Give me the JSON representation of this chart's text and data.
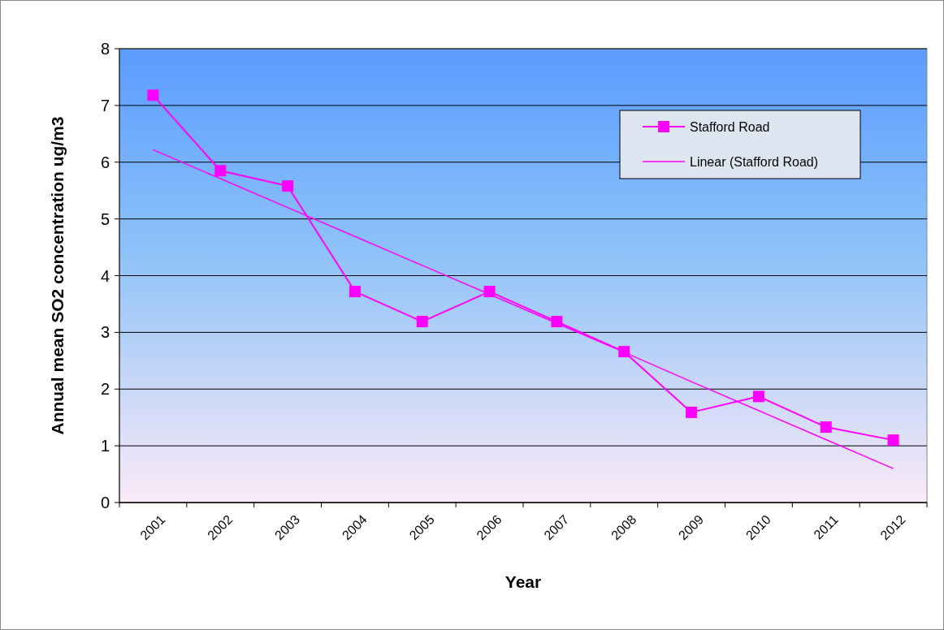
{
  "chart_data": {
    "type": "line",
    "xlabel": "Year",
    "ylabel": "Annual mean SO2 concentration ug/m3",
    "categories": [
      "2001",
      "2002",
      "2003",
      "2004",
      "2005",
      "2006",
      "2007",
      "2008",
      "2009",
      "2010",
      "2011",
      "2012"
    ],
    "series": [
      {
        "name": "Stafford Road",
        "color": "#ff00ff",
        "marker": "square",
        "values": [
          7.18,
          5.85,
          5.58,
          3.72,
          3.19,
          3.72,
          3.19,
          2.66,
          1.59,
          1.87,
          1.33,
          1.1
        ]
      },
      {
        "name": "Linear (Stafford Road)",
        "color": "#ff00ff",
        "marker": "none",
        "values": [
          6.22,
          5.71,
          5.2,
          4.69,
          4.18,
          3.67,
          3.16,
          2.65,
          2.13,
          1.62,
          1.11,
          0.6
        ]
      }
    ],
    "ylim": [
      0,
      8
    ],
    "yticks": [
      0,
      1,
      2,
      3,
      4,
      5,
      6,
      7,
      8
    ],
    "grid": "y",
    "legend": "top right"
  }
}
